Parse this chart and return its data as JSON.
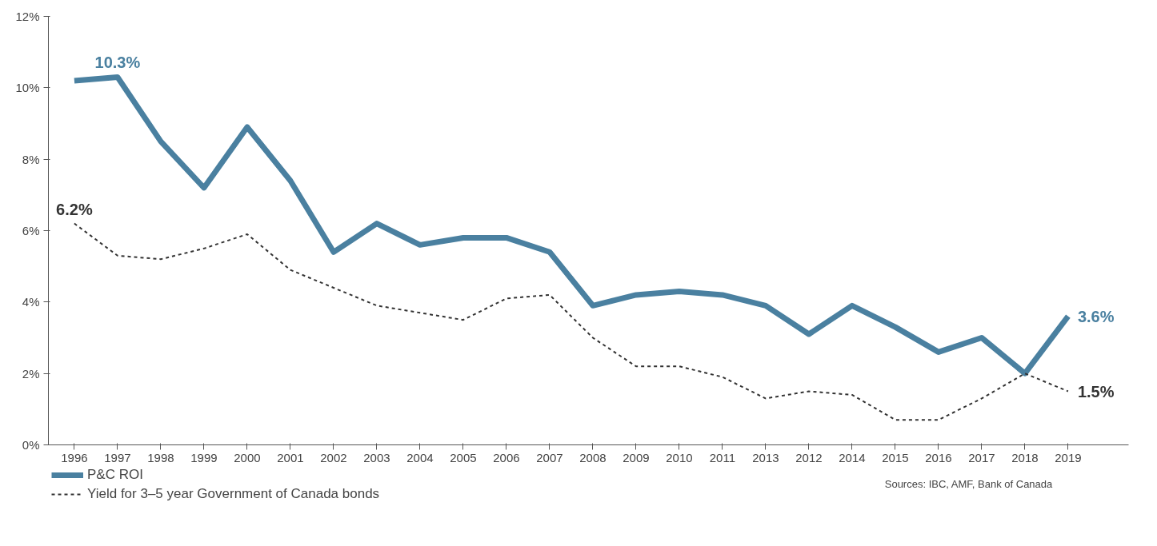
{
  "chart_data": {
    "type": "line",
    "categories": [
      "1996",
      "1997",
      "1998",
      "1999",
      "2000",
      "2001",
      "2002",
      "2003",
      "2004",
      "2005",
      "2006",
      "2007",
      "2008",
      "2009",
      "2010",
      "2011",
      "2013",
      "2012",
      "2014",
      "2015",
      "2016",
      "2017",
      "2018",
      "2019"
    ],
    "series": [
      {
        "name": "P&C ROI",
        "color": "#4a80a0",
        "line_style": "solid",
        "values": [
          10.2,
          10.3,
          8.5,
          7.2,
          8.9,
          7.4,
          5.4,
          6.2,
          5.6,
          5.8,
          5.8,
          5.4,
          3.9,
          4.2,
          4.3,
          4.2,
          3.9,
          3.1,
          3.9,
          3.3,
          2.6,
          3.0,
          2.0,
          3.6
        ],
        "value_labels": [
          null,
          "10.3%",
          null,
          null,
          null,
          null,
          null,
          null,
          null,
          null,
          null,
          null,
          null,
          null,
          null,
          null,
          null,
          null,
          null,
          null,
          null,
          null,
          null,
          "3.6%"
        ]
      },
      {
        "name": "Yield for 3–5 year Government of Canada bonds",
        "color": "#333333",
        "line_style": "dashed",
        "values": [
          6.2,
          5.3,
          5.2,
          5.5,
          5.9,
          4.9,
          4.4,
          3.9,
          3.7,
          3.5,
          4.1,
          4.2,
          3.0,
          2.2,
          2.2,
          1.9,
          1.3,
          1.5,
          1.4,
          0.7,
          0.7,
          1.3,
          2.0,
          1.5
        ],
        "value_labels": [
          "6.2%",
          null,
          null,
          null,
          null,
          null,
          null,
          null,
          null,
          null,
          null,
          null,
          null,
          null,
          null,
          null,
          null,
          null,
          null,
          null,
          null,
          null,
          null,
          "1.5%"
        ]
      }
    ],
    "ylim": [
      0,
      12
    ],
    "yticks": [
      {
        "value": 0,
        "label": "0%"
      },
      {
        "value": 2,
        "label": "2%"
      },
      {
        "value": 4,
        "label": "4%"
      },
      {
        "value": 6,
        "label": "6%"
      },
      {
        "value": 8,
        "label": "8%"
      },
      {
        "value": 10,
        "label": "10%"
      },
      {
        "value": 12,
        "label": "12%"
      }
    ],
    "grid": false,
    "legend": "bottom left",
    "marker": "none",
    "annotations": [
      "Sources: IBC, AMF, Bank of Canada"
    ]
  }
}
